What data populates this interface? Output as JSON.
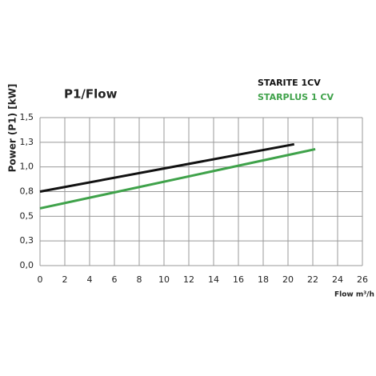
{
  "chart_data": {
    "type": "line",
    "title": "P1/Flow",
    "x_label": "Flow m³/h",
    "y_label": "Power (P1)  [kW]",
    "series": [
      {
        "name": "STARITE 1CV",
        "color": "#111111",
        "x": [
          0,
          20.5
        ],
        "values": [
          0.75,
          1.23
        ]
      },
      {
        "name": "STARPLUS 1 CV",
        "color": "#3fa24a",
        "x": [
          0,
          22.2
        ],
        "values": [
          0.58,
          1.18
        ]
      }
    ],
    "xlim": [
      0,
      26
    ],
    "xticks": [
      0,
      2,
      4,
      6,
      8,
      10,
      12,
      14,
      16,
      18,
      20,
      22,
      24,
      26
    ],
    "ylim": [
      0,
      1.5
    ],
    "yticks": [
      {
        "value": 0,
        "label": "0,0"
      },
      {
        "value": 0.25,
        "label": "0,3"
      },
      {
        "value": 0.5,
        "label": "0,5"
      },
      {
        "value": 0.75,
        "label": "0,8"
      },
      {
        "value": 1.0,
        "label": "1,0"
      },
      {
        "value": 1.25,
        "label": "1,3"
      },
      {
        "value": 1.5,
        "label": "1,5"
      }
    ],
    "grid": true
  }
}
